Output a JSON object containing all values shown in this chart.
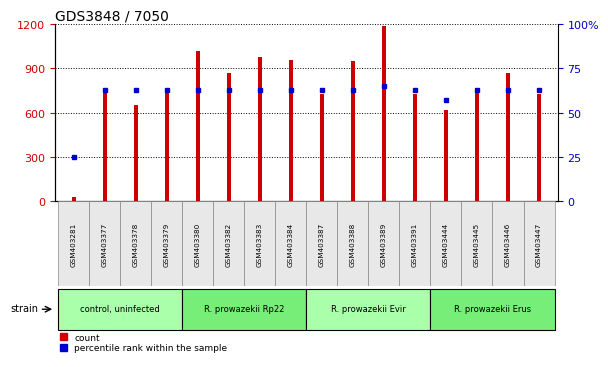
{
  "title": "GDS3848 / 7050",
  "samples": [
    "GSM403281",
    "GSM403377",
    "GSM403378",
    "GSM403379",
    "GSM403380",
    "GSM403382",
    "GSM403383",
    "GSM403384",
    "GSM403387",
    "GSM403388",
    "GSM403389",
    "GSM403391",
    "GSM403444",
    "GSM403445",
    "GSM403446",
    "GSM403447"
  ],
  "counts": [
    30,
    740,
    650,
    750,
    1020,
    870,
    980,
    960,
    730,
    950,
    1190,
    730,
    620,
    760,
    870,
    730
  ],
  "percentiles": [
    25,
    63,
    63,
    63,
    63,
    63,
    63,
    63,
    63,
    63,
    65,
    63,
    57,
    63,
    63,
    63
  ],
  "groups": [
    {
      "label": "control, uninfected",
      "start": 0,
      "end": 3,
      "color": "#aaffaa"
    },
    {
      "label": "R. prowazekii Rp22",
      "start": 4,
      "end": 7,
      "color": "#77ee77"
    },
    {
      "label": "R. prowazekii Evir",
      "start": 8,
      "end": 11,
      "color": "#aaffaa"
    },
    {
      "label": "R. prowazekii Erus",
      "start": 12,
      "end": 15,
      "color": "#77ee77"
    }
  ],
  "bar_color": "#cc0000",
  "dot_color": "#0000cc",
  "left_ylim": [
    0,
    1200
  ],
  "right_ylim": [
    0,
    100
  ],
  "left_yticks": [
    0,
    300,
    600,
    900,
    1200
  ],
  "right_yticks": [
    0,
    25,
    50,
    75,
    100
  ],
  "right_yticklabels": [
    "0",
    "25",
    "50",
    "75",
    "100%"
  ],
  "left_tick_color": "#cc0000",
  "right_tick_color": "#0000cc",
  "legend_count_label": "count",
  "legend_pct_label": "percentile rank within the sample",
  "strain_label": "strain",
  "bar_width": 0.12
}
